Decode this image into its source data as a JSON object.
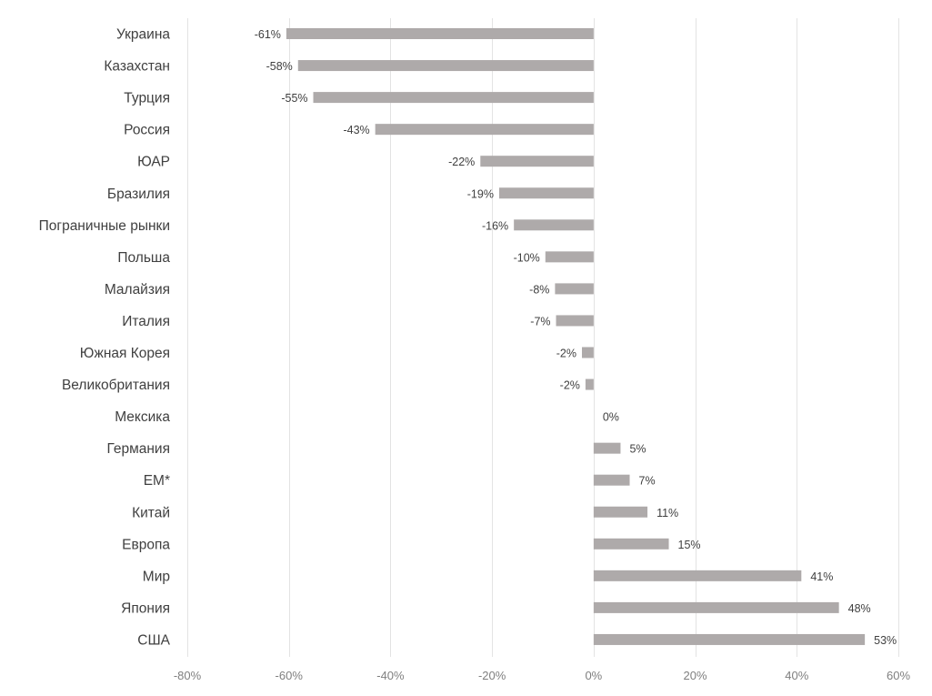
{
  "chart_data": {
    "type": "bar",
    "orientation": "horizontal",
    "title": "",
    "xlabel": "",
    "ylabel": "",
    "categories": [
      "Украина",
      "Казахстан",
      "Турция",
      "Россия",
      "ЮАР",
      "Бразилия",
      "Пограничные рынки",
      "Польша",
      "Малайзия",
      "Италия",
      "Южная Корея",
      "Великобритания",
      "Мексика",
      "Германия",
      "EM*",
      "Китай",
      "Европа",
      "Мир",
      "Япония",
      "США"
    ],
    "values": [
      -60.5,
      -58.2,
      -55.2,
      -43.0,
      -22.3,
      -18.6,
      -15.7,
      -9.5,
      -7.6,
      -7.4,
      -2.3,
      -1.6,
      0.0,
      5.3,
      7.1,
      10.6,
      14.8,
      40.9,
      48.3,
      53.4
    ],
    "value_labels": [
      "-61%",
      "-58%",
      "-55%",
      "-43%",
      "-22%",
      "-19%",
      "-16%",
      "-10%",
      "-8%",
      "-7%",
      "-2%",
      "-2%",
      "0%",
      "5%",
      "7%",
      "11%",
      "15%",
      "41%",
      "48%",
      "53%"
    ],
    "xlim": [
      -80,
      60
    ],
    "xticks": [
      -80,
      -60,
      -40,
      -20,
      0,
      20,
      40,
      60
    ],
    "xtick_labels": [
      "-80%",
      "-60%",
      "-40%",
      "-20%",
      "0%",
      "20%",
      "40%",
      "60%"
    ],
    "grid": true,
    "legend": "none",
    "colors": {
      "bar": "#aeaaaa",
      "grid": "#e3e3e3",
      "text": "#404040",
      "tick_text": "#7f7f7f"
    }
  }
}
